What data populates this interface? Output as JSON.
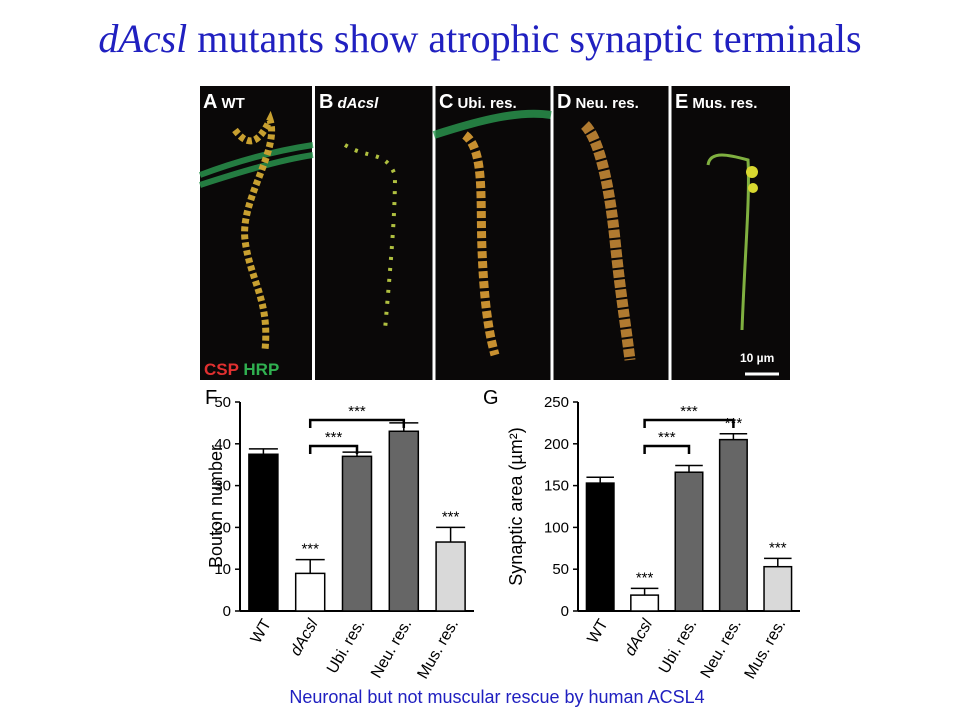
{
  "title": {
    "italic": "dAcsl",
    "rest": "mutants show atrophic synaptic terminals"
  },
  "panels": [
    {
      "letter": "A",
      "label": "WT"
    },
    {
      "letter": "B",
      "label": "dAcsl"
    },
    {
      "letter": "C",
      "label": "Ubi. res."
    },
    {
      "letter": "D",
      "label": "Neu. res."
    },
    {
      "letter": "E",
      "label": "Mus. res."
    }
  ],
  "stain_labels": [
    "CSP",
    "HRP"
  ],
  "scale_bar": "10 µm",
  "chart_data": [
    {
      "type": "bar",
      "panel": "F",
      "ylabel": "Bouton number",
      "categories": [
        "WT",
        "dAcsl",
        "Ubi. res.",
        "Neu. res.",
        "Mus. res."
      ],
      "values": [
        37.5,
        9,
        37,
        43,
        16.5
      ],
      "errors": [
        1.3,
        3.3,
        1,
        2,
        3.5
      ],
      "colors": [
        "#000000",
        "#ffffff",
        "#666666",
        "#666666",
        "#d9d9d9"
      ],
      "bar_labels": [
        null,
        "***",
        null,
        null,
        "***"
      ],
      "brackets": [
        {
          "from": 1,
          "to": 2,
          "label": "***"
        },
        {
          "from": 1,
          "to": 3,
          "label": "***"
        }
      ],
      "ylim": [
        0,
        50
      ],
      "yticks": [
        0,
        10,
        20,
        30,
        40,
        50
      ]
    },
    {
      "type": "bar",
      "panel": "G",
      "ylabel": "Synaptic area (µm²)",
      "categories": [
        "WT",
        "dAcsl",
        "Ubi. res.",
        "Neu. res.",
        "Mus. res."
      ],
      "values": [
        153,
        19,
        166,
        205,
        53
      ],
      "errors": [
        7,
        8,
        8,
        7,
        10
      ],
      "colors": [
        "#000000",
        "#ffffff",
        "#666666",
        "#666666",
        "#d9d9d9"
      ],
      "bar_labels": [
        null,
        "***",
        null,
        "***",
        "***"
      ],
      "brackets": [
        {
          "from": 1,
          "to": 2,
          "label": "***"
        },
        {
          "from": 1,
          "to": 3,
          "label": "***"
        }
      ],
      "ylim": [
        0,
        250
      ],
      "yticks": [
        0,
        50,
        100,
        150,
        200,
        250
      ]
    }
  ],
  "caption": "Neuronal but not muscular rescue by human ACSL4"
}
